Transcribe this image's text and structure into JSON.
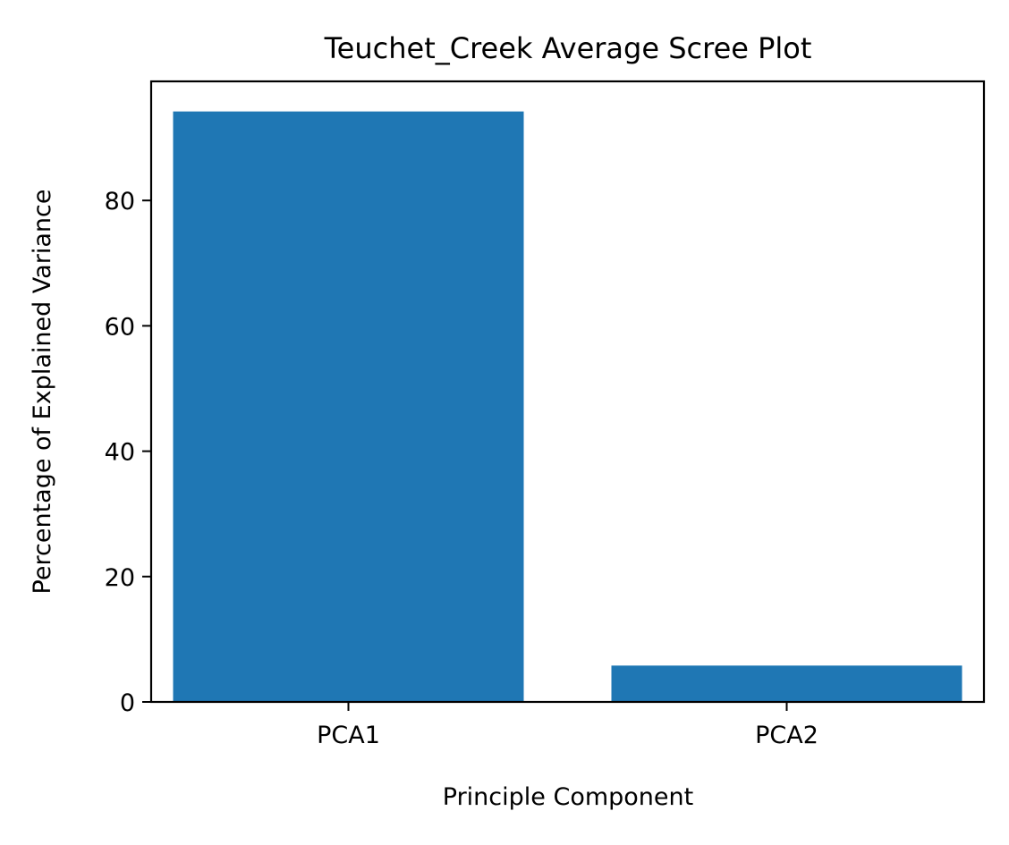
{
  "chart_data": {
    "type": "bar",
    "title": "Teuchet_Creek Average Scree Plot",
    "xlabel": "Principle Component",
    "ylabel": "Percentage of Explained Variance",
    "categories": [
      "PCA1",
      "PCA2"
    ],
    "values": [
      94.2,
      5.8
    ],
    "ylim": [
      0,
      99
    ],
    "yticks": [
      0,
      20,
      40,
      60,
      80
    ],
    "bar_color": "#1f77b4",
    "grid": false,
    "legend": "none"
  }
}
